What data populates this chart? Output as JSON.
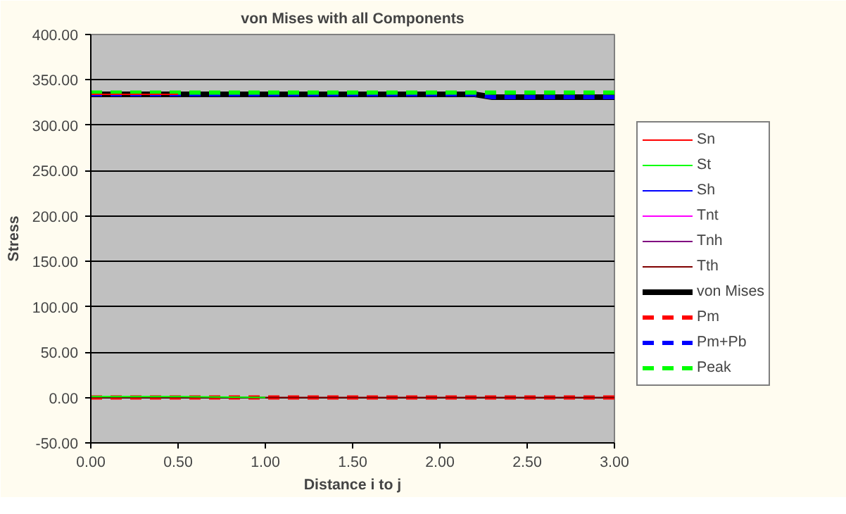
{
  "chart_data": {
    "type": "line",
    "title": "von Mises with all Components",
    "xlabel": "Distance i to j",
    "ylabel": "Stress",
    "x": [
      0,
      0.5,
      1,
      1.5,
      2,
      2.2,
      2.3,
      2.5,
      3
    ],
    "xlim": [
      0,
      3
    ],
    "xticks": [
      {
        "value": 0,
        "label": "0.00"
      },
      {
        "value": 0.5,
        "label": "0.50"
      },
      {
        "value": 1,
        "label": "1.00"
      },
      {
        "value": 1.5,
        "label": "1.50"
      },
      {
        "value": 2,
        "label": "2.00"
      },
      {
        "value": 2.5,
        "label": "2.50"
      },
      {
        "value": 3,
        "label": "3.00"
      }
    ],
    "ylim": [
      -50,
      400
    ],
    "yticks": [
      {
        "value": -50,
        "label": "-50.00"
      },
      {
        "value": 0,
        "label": "0.00"
      },
      {
        "value": 50,
        "label": "50.00"
      },
      {
        "value": 100,
        "label": "100.00"
      },
      {
        "value": 150,
        "label": "150.00"
      },
      {
        "value": 200,
        "label": "200.00"
      },
      {
        "value": 250,
        "label": "250.00"
      },
      {
        "value": 300,
        "label": "300.00"
      },
      {
        "value": 350,
        "label": "350.00"
      },
      {
        "value": 400,
        "label": "400.00"
      }
    ],
    "grid": "y",
    "legend": "right",
    "marker": "none",
    "series": [
      {
        "name": "Sn",
        "color": "#ff0000",
        "values": [
          334,
          334,
          null,
          null,
          null,
          null,
          null,
          null,
          null
        ]
      },
      {
        "name": "St",
        "color": "#00ff00",
        "values": [
          1,
          1,
          0,
          null,
          null,
          null,
          null,
          null,
          null
        ]
      },
      {
        "name": "Sh",
        "color": "#0000ff",
        "values": [
          null,
          null,
          null,
          null,
          null,
          null,
          null,
          null,
          null
        ]
      },
      {
        "name": "Tnt",
        "color": "#ff00ff",
        "values": [
          null,
          null,
          null,
          null,
          null,
          null,
          null,
          null,
          null
        ]
      },
      {
        "name": "Tnh",
        "color": "#800080",
        "values": [
          null,
          null,
          null,
          null,
          null,
          null,
          null,
          null,
          null
        ]
      },
      {
        "name": "Tth",
        "color": "#800000",
        "values": [
          0,
          0,
          0,
          0,
          0,
          0,
          0,
          0,
          0
        ]
      },
      {
        "name": "von Mises",
        "color": "#000000",
        "values": [
          334,
          334,
          334,
          334,
          334,
          334,
          331,
          331,
          331
        ]
      },
      {
        "name": "Pm",
        "color": "#ff0000",
        "line_style": "dashed",
        "values": [
          0,
          0,
          0,
          0,
          0,
          0,
          0,
          0,
          0
        ]
      },
      {
        "name": "Pm+Pb",
        "color": "#0000ff",
        "line_style": "dashed",
        "values": [
          334,
          334,
          334,
          334,
          334,
          334,
          331,
          331,
          331
        ]
      },
      {
        "name": "Peak",
        "color": "#00ff00",
        "line_style": "dashed",
        "values": [
          336,
          336,
          336,
          336,
          336,
          336,
          336,
          336,
          336
        ]
      }
    ]
  }
}
